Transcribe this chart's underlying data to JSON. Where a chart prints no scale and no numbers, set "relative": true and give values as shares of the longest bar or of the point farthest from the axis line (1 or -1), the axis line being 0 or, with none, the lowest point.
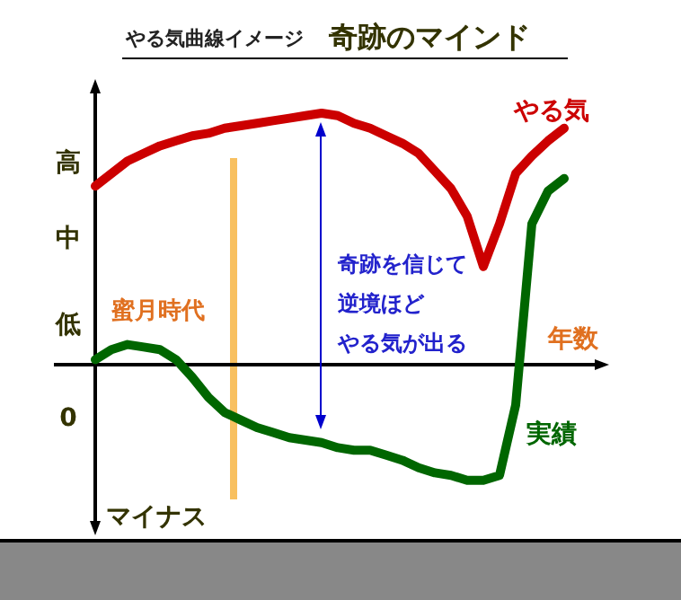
{
  "chart_data": {
    "type": "line",
    "title": "奇跡のマインド",
    "subtitle": "やる気曲線イメージ",
    "xlabel": "年数",
    "relative": true,
    "marker": "none",
    "line_style": "solid",
    "categories": [
      null,
      null,
      null,
      null,
      null,
      null,
      null,
      null,
      null,
      null,
      null,
      null,
      null,
      null,
      null,
      null,
      null,
      null,
      null,
      null,
      null,
      null,
      null,
      null,
      null,
      null,
      null,
      null,
      null,
      null
    ],
    "series": [
      {
        "name": "やる気",
        "color": "#cc0000",
        "values": [
          0.71,
          0.76,
          0.81,
          0.84,
          0.87,
          0.89,
          0.91,
          0.92,
          0.94,
          0.95,
          0.96,
          0.97,
          0.98,
          0.99,
          1.0,
          0.99,
          0.96,
          0.94,
          0.91,
          0.88,
          0.84,
          0.77,
          0.7,
          0.59,
          0.39,
          0.56,
          0.76,
          0.83,
          0.89,
          0.94
        ]
      },
      {
        "name": "実績",
        "color": "#006600",
        "values": [
          0.02,
          0.06,
          0.08,
          0.07,
          0.06,
          0.02,
          -0.05,
          -0.13,
          -0.19,
          -0.22,
          -0.25,
          -0.27,
          -0.29,
          -0.3,
          -0.31,
          -0.33,
          -0.34,
          -0.34,
          -0.36,
          -0.38,
          -0.41,
          -0.43,
          -0.44,
          -0.46,
          -0.46,
          -0.44,
          -0.16,
          0.56,
          0.69,
          0.74
        ]
      }
    ],
    "annotations": [
      "高",
      "中",
      "低",
      "0",
      "マイナス",
      "蜜月時代",
      "奇跡を信じて",
      "逆境ほど",
      "やる気が出る"
    ]
  }
}
